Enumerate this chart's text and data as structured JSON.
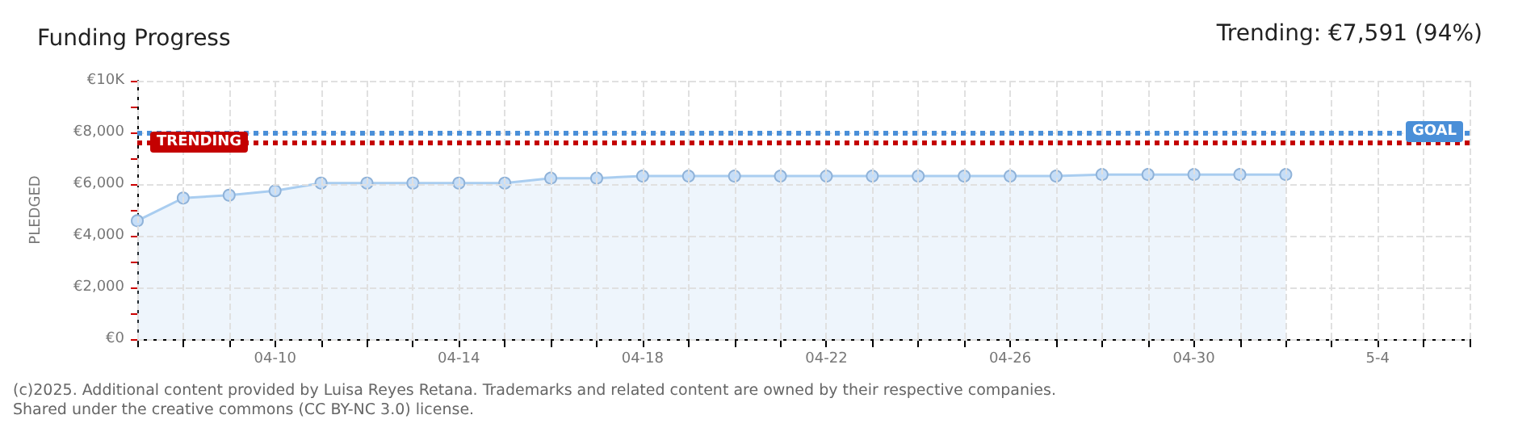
{
  "chart_data": {
    "type": "area",
    "title": "Funding Progress",
    "ylabel": "PLEDGED",
    "annotations": [
      "Trending: €7,591 (94%)",
      "(c)2025. Additional content provided by Luisa Reyes Retana. Trademarks and related content are owned by their respective companies.",
      "Shared under the creative commons (CC BY-NC 3.0) license."
    ],
    "x": [
      "--04-07",
      "--04-08",
      "--04-09",
      "--04-10",
      "--04-11",
      "--04-12",
      "--04-13",
      "--04-14",
      "--04-15",
      "--04-16",
      "--04-17",
      "--04-18",
      "--04-19",
      "--04-20",
      "--04-21",
      "--04-22",
      "--04-23",
      "--04-24",
      "--04-25",
      "--04-26",
      "--04-27",
      "--04-28",
      "--04-29",
      "--04-30",
      "--05-01",
      "--05-02"
    ],
    "series": [
      {
        "color": "#a9cdf0",
        "values": [
          4580,
          5460,
          5570,
          5740,
          6040,
          6040,
          6040,
          6040,
          6040,
          6230,
          6230,
          6310,
          6310,
          6310,
          6310,
          6310,
          6310,
          6310,
          6310,
          6310,
          6310,
          6370,
          6370,
          6370,
          6370,
          6370
        ]
      }
    ],
    "marker": "circle",
    "xlim": [
      "--04-07",
      "--05-06"
    ],
    "xticks": [
      {
        "value": "--04-07",
        "label": null
      },
      {
        "value": "--04-08",
        "label": null
      },
      {
        "value": "--04-09",
        "label": null
      },
      {
        "value": "--04-10",
        "label": "04-10"
      },
      {
        "value": "--04-11",
        "label": null
      },
      {
        "value": "--04-12",
        "label": null
      },
      {
        "value": "--04-13",
        "label": null
      },
      {
        "value": "--04-14",
        "label": "04-14"
      },
      {
        "value": "--04-15",
        "label": null
      },
      {
        "value": "--04-16",
        "label": null
      },
      {
        "value": "--04-17",
        "label": null
      },
      {
        "value": "--04-18",
        "label": "04-18"
      },
      {
        "value": "--04-19",
        "label": null
      },
      {
        "value": "--04-20",
        "label": null
      },
      {
        "value": "--04-21",
        "label": null
      },
      {
        "value": "--04-22",
        "label": "04-22"
      },
      {
        "value": "--04-23",
        "label": null
      },
      {
        "value": "--04-24",
        "label": null
      },
      {
        "value": "--04-25",
        "label": null
      },
      {
        "value": "--04-26",
        "label": "04-26"
      },
      {
        "value": "--04-27",
        "label": null
      },
      {
        "value": "--04-28",
        "label": null
      },
      {
        "value": "--04-29",
        "label": null
      },
      {
        "value": "--04-30",
        "label": "04-30"
      },
      {
        "value": "--05-01",
        "label": null
      },
      {
        "value": "--05-02",
        "label": null
      },
      {
        "value": "--05-03",
        "label": null
      },
      {
        "value": "--05-04",
        "label": "5-4"
      },
      {
        "value": "--05-05",
        "label": null
      },
      {
        "value": "--05-06",
        "label": null
      }
    ],
    "ylim": [
      0,
      10000
    ],
    "yticks": [
      {
        "value": 0,
        "label": "€0"
      },
      {
        "value": 1000,
        "label": null
      },
      {
        "value": 2000,
        "label": "€2,000"
      },
      {
        "value": 3000,
        "label": null
      },
      {
        "value": 4000,
        "label": "€4,000"
      },
      {
        "value": 5000,
        "label": null
      },
      {
        "value": 6000,
        "label": "€6,000"
      },
      {
        "value": 7000,
        "label": null
      },
      {
        "value": 8000,
        "label": "€8,000"
      },
      {
        "value": 9000,
        "label": null
      },
      {
        "value": 10000,
        "label": "€10K"
      }
    ],
    "grid": true,
    "ref_lines": [
      {
        "axis": "y",
        "value": 8000,
        "label": "GOAL",
        "color": "#4a8fd8",
        "line_style": "dotted"
      },
      {
        "axis": "y",
        "value": 7591,
        "label": "TRENDING",
        "color": "#c40000",
        "line_style": "dotted"
      }
    ]
  }
}
